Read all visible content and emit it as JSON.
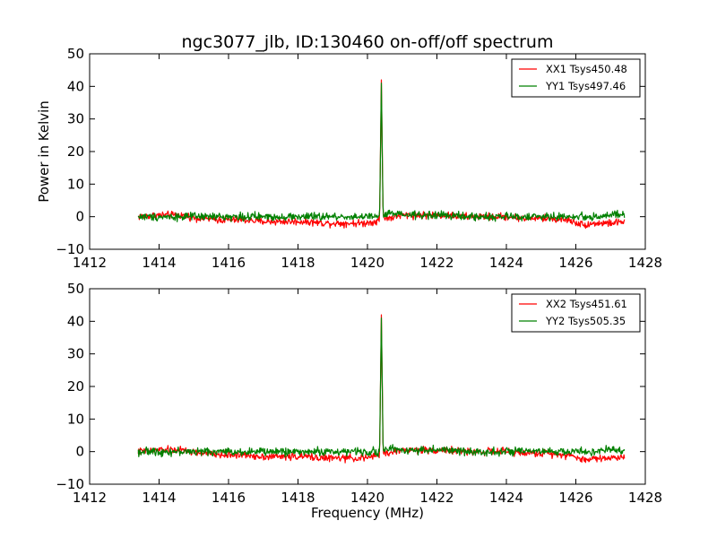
{
  "chart_data": {
    "type": "line",
    "title": "ngc3077_jlb, ID:130460 on-off/off spectrum",
    "xlabel": "Frequency (MHz)",
    "ylabel": "Power in Kelvin",
    "xlim": [
      1412,
      1428
    ],
    "ylim": [
      -10,
      50
    ],
    "xticks": [
      1412,
      1414,
      1416,
      1418,
      1420,
      1422,
      1424,
      1426,
      1428
    ],
    "yticks": [
      -10,
      0,
      10,
      20,
      30,
      40,
      50
    ],
    "grid": false,
    "legend_position": "top-right",
    "panels": [
      {
        "series": [
          {
            "name": "XX1 Tsys450.48",
            "color": "#ff0000",
            "x": [
              1413.4,
              1414.0,
              1414.6,
              1415.2,
              1415.8,
              1416.4,
              1417.0,
              1417.6,
              1418.2,
              1418.8,
              1419.4,
              1419.9,
              1420.2,
              1420.35,
              1420.4,
              1420.45,
              1420.6,
              1421.0,
              1421.6,
              1422.2,
              1422.8,
              1423.4,
              1424.0,
              1424.6,
              1425.2,
              1425.8,
              1426.2,
              1426.6,
              1427.0,
              1427.4
            ],
            "y": [
              0,
              0.5,
              0.5,
              -0.5,
              -1,
              -1,
              -1.5,
              -1.5,
              -1.5,
              -2,
              -2,
              -2,
              -1.5,
              -1,
              42,
              0,
              -0.5,
              0.5,
              0.5,
              0.5,
              0,
              0,
              0,
              -0.5,
              -0.5,
              -1,
              -2.5,
              -2,
              -2,
              -1.5
            ]
          },
          {
            "name": "YY1 Tsys497.46",
            "color": "#008000",
            "x": [
              1413.4,
              1414.0,
              1414.6,
              1415.2,
              1415.8,
              1416.4,
              1417.0,
              1417.6,
              1418.2,
              1418.8,
              1419.4,
              1419.9,
              1420.2,
              1420.35,
              1420.4,
              1420.45,
              1420.6,
              1421.0,
              1421.6,
              1422.2,
              1422.8,
              1423.4,
              1424.0,
              1424.6,
              1425.2,
              1425.8,
              1426.2,
              1426.6,
              1427.0,
              1427.4
            ],
            "y": [
              0,
              0,
              0,
              0,
              0,
              0,
              0,
              0,
              0,
              0,
              0,
              0,
              0,
              0,
              41,
              0,
              1,
              0.5,
              0.5,
              0.5,
              0,
              0,
              0,
              0,
              0,
              0,
              0,
              0,
              0.5,
              0.5
            ]
          }
        ]
      },
      {
        "series": [
          {
            "name": "XX2 Tsys451.61",
            "color": "#ff0000",
            "x": [
              1413.4,
              1414.0,
              1414.6,
              1415.2,
              1415.8,
              1416.4,
              1417.0,
              1417.6,
              1418.2,
              1418.8,
              1419.4,
              1419.9,
              1420.2,
              1420.35,
              1420.4,
              1420.45,
              1420.6,
              1421.0,
              1421.6,
              1422.2,
              1422.8,
              1423.4,
              1424.0,
              1424.6,
              1425.2,
              1425.8,
              1426.2,
              1426.6,
              1427.0,
              1427.4
            ],
            "y": [
              0,
              0.5,
              0.5,
              -0.5,
              -1,
              -1,
              -1.5,
              -1.5,
              -1.5,
              -2,
              -2,
              -2,
              -1.5,
              -1,
              42,
              0,
              -0.5,
              0.5,
              0.5,
              0.5,
              0,
              0,
              0,
              -0.5,
              -0.5,
              -1,
              -2.5,
              -2,
              -2,
              -1.5
            ]
          },
          {
            "name": "YY2 Tsys505.35",
            "color": "#008000",
            "x": [
              1413.4,
              1414.0,
              1414.6,
              1415.2,
              1415.8,
              1416.4,
              1417.0,
              1417.6,
              1418.2,
              1418.8,
              1419.4,
              1419.9,
              1420.2,
              1420.35,
              1420.4,
              1420.45,
              1420.6,
              1421.0,
              1421.6,
              1422.2,
              1422.8,
              1423.4,
              1424.0,
              1424.6,
              1425.2,
              1425.8,
              1426.2,
              1426.6,
              1427.0,
              1427.4
            ],
            "y": [
              0,
              0,
              0,
              0,
              0,
              0,
              0,
              0,
              0,
              0,
              0,
              0,
              0,
              0,
              41,
              0,
              1,
              0.5,
              0.5,
              0.5,
              0,
              0,
              0,
              0,
              0,
              0,
              0,
              0,
              0.5,
              0.5
            ]
          }
        ]
      }
    ]
  }
}
